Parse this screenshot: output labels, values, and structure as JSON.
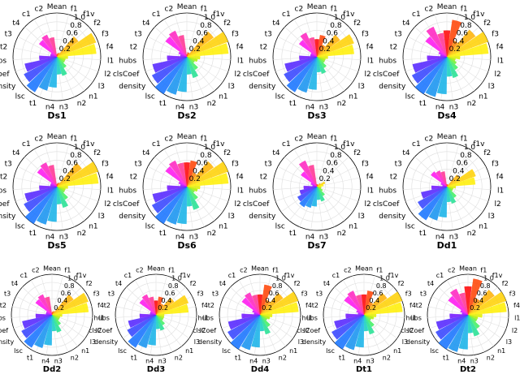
{
  "chart_data": {
    "type": "polar-bar",
    "grid": true,
    "rlim": [
      0,
      1.0
    ],
    "r_ticks": [
      "0.2",
      "0.4",
      "0.6",
      "0.8",
      "1.0"
    ],
    "axis_labels": [
      "Mean",
      "f1",
      "f1v",
      "f2",
      "f3",
      "f4",
      "l1",
      "l2",
      "l3",
      "n1",
      "n2",
      "n3",
      "n4",
      "t1",
      "lsc",
      "density",
      "clsCoef",
      "hubs",
      "t2",
      "t3",
      "t4",
      "c1",
      "c2"
    ],
    "bar_colors": [
      "#ff0000",
      "#ff4000",
      "#ff8000",
      "#ffb000",
      "#ffd000",
      "#ffee00",
      "#e0f000",
      "#b0f000",
      "#70f030",
      "#40f060",
      "#20e090",
      "#10d0c0",
      "#10b0e8",
      "#1090f0",
      "#1070ff",
      "#3040ff",
      "#5020ff",
      "#7010ff",
      "#a010ff",
      "#d010ff",
      "#ff10f0",
      "#ff20c0",
      "#ff3090"
    ],
    "panels": [
      {
        "title": "Ds1",
        "values": [
          0.05,
          0.08,
          0.1,
          0.6,
          0.95,
          0.9,
          0.25,
          0.2,
          0.2,
          0.3,
          0.45,
          0.4,
          0.7,
          0.8,
          0.95,
          0.85,
          0.75,
          0.4,
          0.15,
          0.15,
          0.5,
          0.55,
          0.45
        ]
      },
      {
        "title": "Ds2",
        "values": [
          0.05,
          0.1,
          0.1,
          0.75,
          1.0,
          0.95,
          0.3,
          0.25,
          0.2,
          0.35,
          0.5,
          0.4,
          0.8,
          0.9,
          1.0,
          0.9,
          0.8,
          0.45,
          0.15,
          0.2,
          0.6,
          0.65,
          0.5
        ]
      },
      {
        "title": "Ds3",
        "values": [
          0.4,
          0.5,
          0.3,
          0.65,
          0.9,
          0.85,
          0.25,
          0.2,
          0.2,
          0.3,
          0.4,
          0.35,
          0.75,
          0.85,
          0.95,
          0.85,
          0.75,
          0.4,
          0.15,
          0.15,
          0.5,
          0.6,
          0.45
        ]
      },
      {
        "title": "Ds4",
        "values": [
          0.6,
          0.85,
          0.4,
          0.8,
          1.0,
          0.95,
          0.3,
          0.2,
          0.25,
          0.35,
          0.5,
          0.45,
          0.85,
          0.95,
          1.0,
          0.9,
          0.8,
          0.45,
          0.15,
          0.2,
          0.6,
          0.75,
          0.55
        ]
      },
      {
        "title": "Ds5",
        "values": [
          0.05,
          0.08,
          0.1,
          0.7,
          1.0,
          0.95,
          0.25,
          0.2,
          0.2,
          0.35,
          0.5,
          0.4,
          0.8,
          0.9,
          1.0,
          0.85,
          0.75,
          0.4,
          0.15,
          0.15,
          0.55,
          0.6,
          0.5
        ]
      },
      {
        "title": "Ds6",
        "values": [
          0.55,
          0.6,
          0.35,
          0.75,
          1.0,
          0.95,
          0.3,
          0.25,
          0.2,
          0.35,
          0.55,
          0.45,
          0.85,
          0.9,
          1.0,
          0.9,
          0.8,
          0.45,
          0.15,
          0.2,
          0.6,
          0.65,
          0.55
        ]
      },
      {
        "title": "Ds7",
        "values": [
          0.05,
          0.05,
          0.05,
          0.1,
          0.2,
          0.15,
          0.1,
          0.1,
          0.15,
          0.25,
          0.35,
          0.3,
          0.45,
          0.5,
          0.55,
          0.5,
          0.4,
          0.3,
          0.1,
          0.15,
          0.45,
          0.65,
          0.5
        ]
      },
      {
        "title": "Dd1",
        "values": [
          0.05,
          0.05,
          0.05,
          0.35,
          0.7,
          0.65,
          0.2,
          0.15,
          0.15,
          0.3,
          0.4,
          0.35,
          0.7,
          0.8,
          0.9,
          0.75,
          0.6,
          0.35,
          0.1,
          0.15,
          0.45,
          0.4,
          0.35
        ]
      },
      {
        "title": "Dd2",
        "values": [
          0.05,
          0.08,
          0.1,
          0.65,
          0.95,
          0.9,
          0.25,
          0.2,
          0.2,
          0.3,
          0.45,
          0.4,
          0.75,
          0.85,
          0.95,
          0.85,
          0.75,
          0.4,
          0.15,
          0.15,
          0.5,
          0.55,
          0.45
        ]
      },
      {
        "title": "Dd3",
        "values": [
          0.35,
          0.45,
          0.3,
          0.55,
          0.85,
          0.8,
          0.2,
          0.2,
          0.2,
          0.3,
          0.4,
          0.35,
          0.75,
          0.85,
          0.95,
          0.8,
          0.7,
          0.4,
          0.15,
          0.15,
          0.5,
          0.55,
          0.45
        ]
      },
      {
        "title": "Dd4",
        "values": [
          0.5,
          0.75,
          0.4,
          0.7,
          1.0,
          0.95,
          0.3,
          0.25,
          0.2,
          0.35,
          0.5,
          0.4,
          0.8,
          0.9,
          1.0,
          0.9,
          0.8,
          0.45,
          0.15,
          0.2,
          0.55,
          0.6,
          0.5
        ]
      },
      {
        "title": "Dt1",
        "values": [
          0.5,
          0.6,
          0.35,
          0.7,
          1.0,
          0.95,
          0.3,
          0.25,
          0.2,
          0.35,
          0.5,
          0.4,
          0.8,
          0.9,
          1.0,
          0.9,
          0.75,
          0.45,
          0.15,
          0.2,
          0.6,
          0.65,
          0.5
        ]
      },
      {
        "title": "Dt2",
        "values": [
          0.7,
          0.9,
          0.45,
          0.8,
          1.0,
          0.95,
          0.35,
          0.25,
          0.25,
          0.4,
          0.55,
          0.45,
          0.85,
          0.95,
          1.0,
          0.9,
          0.8,
          0.45,
          0.15,
          0.2,
          0.6,
          0.7,
          0.55
        ]
      }
    ]
  }
}
